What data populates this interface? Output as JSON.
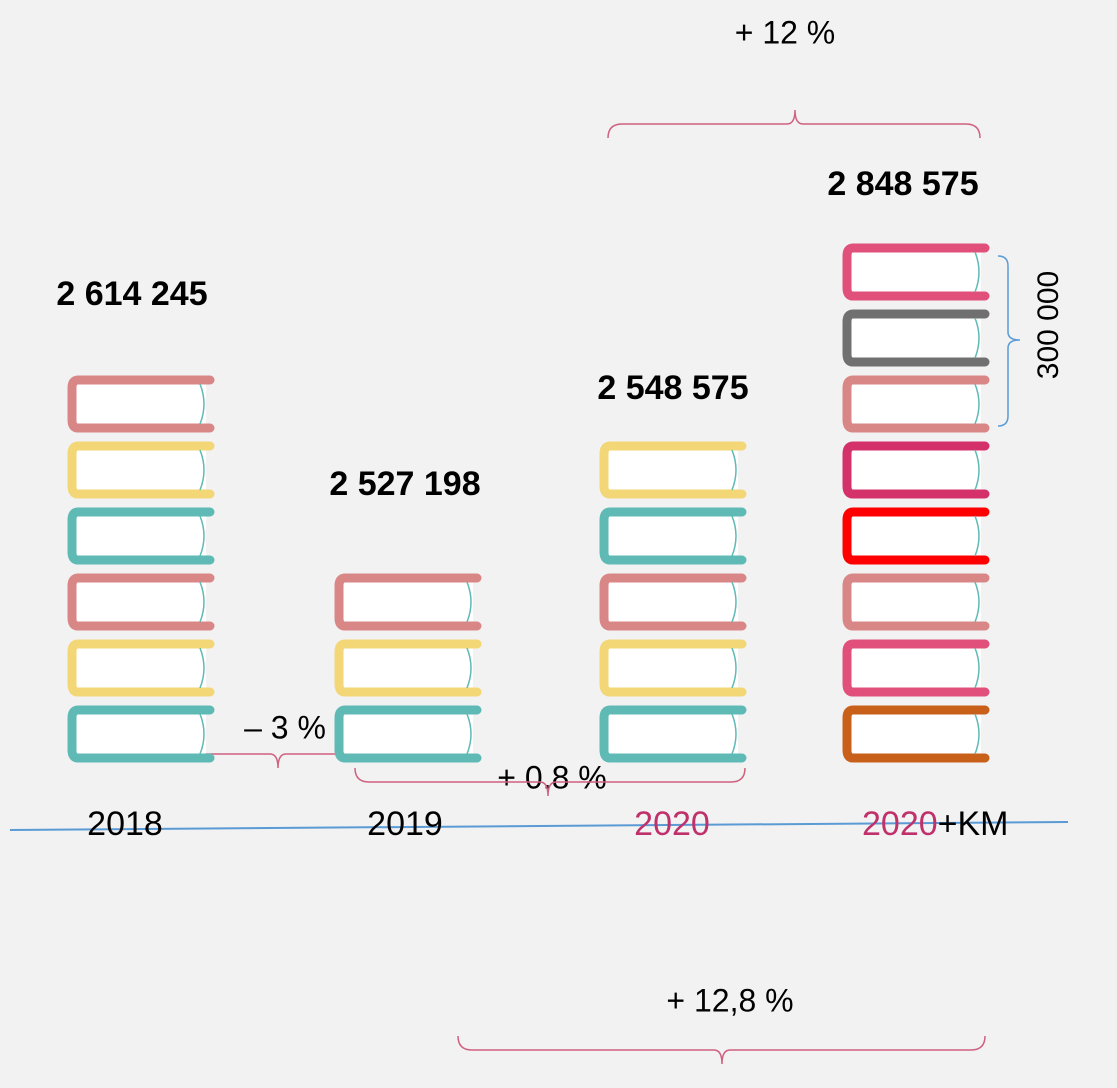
{
  "columns": [
    {
      "value": "2 614 245",
      "year": "2018",
      "books": [
        "#d98686",
        "#f3d675",
        "#5fbab5",
        "#d98686",
        "#f3d675",
        "#5fbab5"
      ]
    },
    {
      "value": "2 527 198",
      "year": "2019",
      "books": [
        "#d98686",
        "#f3d675",
        "#5fbab5"
      ]
    },
    {
      "value": "2 548 575",
      "year": "2020",
      "books": [
        "#f3d675",
        "#5fbab5",
        "#d98686",
        "#f3d675",
        "#5fbab5"
      ]
    },
    {
      "value": "2 848 575",
      "year": "2020",
      "year_suffix": "+KM",
      "books": [
        "#e0507a",
        "#707070",
        "#d98686",
        "#d4306a",
        "#ff0000",
        "#d98686",
        "#e0507a",
        "#c8601a"
      ]
    }
  ],
  "brace_note": "300 000",
  "changes": [
    "+ 12 %",
    "– 3 %",
    "+ 0.8 %",
    "+ 12,8 %"
  ]
}
